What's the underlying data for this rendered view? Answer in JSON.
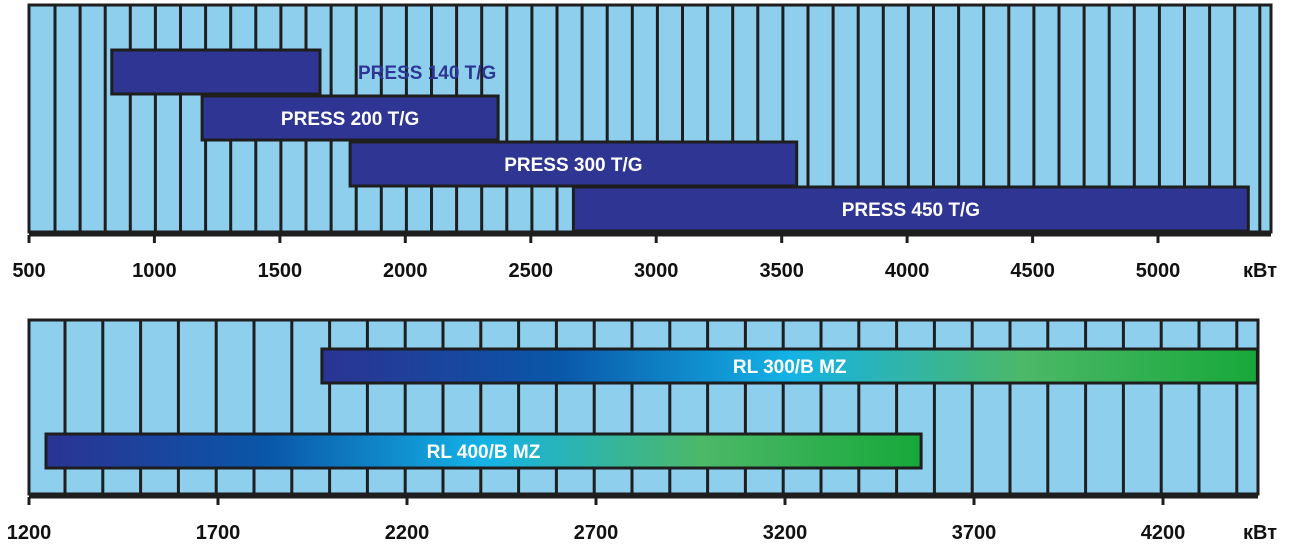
{
  "chart_data": [
    {
      "type": "range-bar",
      "unit": "кВт",
      "xlim": [
        500,
        5450
      ],
      "ticks": [
        500,
        1000,
        1500,
        2000,
        2500,
        3000,
        3500,
        4000,
        4500,
        5000
      ],
      "tick_labels": [
        "500",
        "1000",
        "1500",
        "2000",
        "2500",
        "3000",
        "3500",
        "4000",
        "4500",
        "5000"
      ],
      "grid": true,
      "series": [
        {
          "name": "PRESS 140 T/G",
          "range": [
            830,
            1660
          ],
          "fill": "solid",
          "label_position": "outside-right"
        },
        {
          "name": "PRESS 200 T/G",
          "range": [
            1190,
            2370
          ],
          "fill": "solid",
          "label_position": "inside"
        },
        {
          "name": "PRESS 300 T/G",
          "range": [
            1780,
            3560
          ],
          "fill": "solid",
          "label_position": "inside"
        },
        {
          "name": "PRESS 450 T/G",
          "range": [
            2670,
            5360
          ],
          "fill": "solid",
          "label_position": "inside"
        }
      ]
    },
    {
      "type": "range-bar",
      "unit": "кВт",
      "xlim": [
        1200,
        4460
      ],
      "ticks": [
        1200,
        1700,
        2200,
        2700,
        3200,
        3700,
        4200
      ],
      "tick_labels": [
        "1200",
        "1700",
        "2200",
        "2700",
        "3200",
        "3700",
        "4200"
      ],
      "grid": true,
      "series": [
        {
          "name": "RL 300/B MZ",
          "range": [
            1975,
            4450
          ],
          "fill": "gradient",
          "label_position": "inside"
        },
        {
          "name": "RL 400/B MZ",
          "range": [
            1245,
            3560
          ],
          "fill": "gradient",
          "label_position": "inside"
        }
      ]
    }
  ],
  "colors": {
    "panel_bg": "#8dcfed",
    "grid_line": "#1e1e1e",
    "bar_solid": "#2e3592",
    "label_light": "#ffffff",
    "label_dark": "#2e3592",
    "gradient": [
      "#2b3393",
      "#0a56a8",
      "#14b2e6",
      "#4cb868",
      "#17a83a"
    ]
  }
}
